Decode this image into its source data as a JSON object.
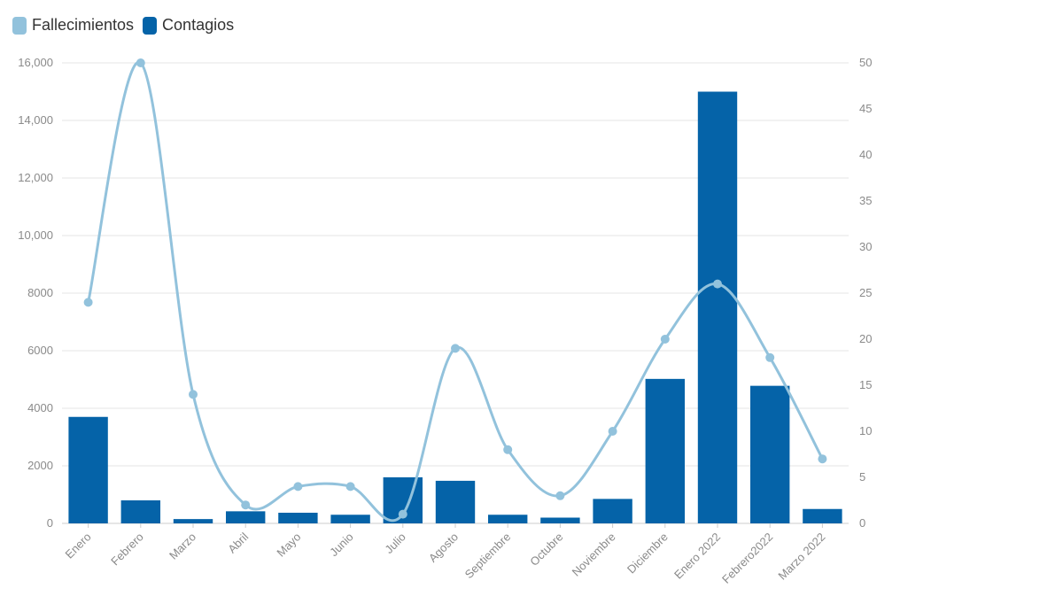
{
  "legend": [
    {
      "label": "Fallecimientos",
      "color": "#92c2dc"
    },
    {
      "label": "Contagios",
      "color": "#0563a8"
    }
  ],
  "chart_data": {
    "type": "bar",
    "categories": [
      "Enero",
      "Febrero",
      "Marzo",
      "Abril",
      "Mayo",
      "Junio",
      "Julio",
      "Agosto",
      "Septiembre",
      "Octubre",
      "Noviembre",
      "Diciembre",
      "Enero 2022",
      "Febrero2022",
      "Marzo 2022"
    ],
    "series": [
      {
        "name": "Contagios",
        "type": "bar",
        "axis": "left",
        "color": "#0563a8",
        "values": [
          3700,
          800,
          150,
          420,
          370,
          300,
          1600,
          1480,
          300,
          200,
          850,
          5020,
          15000,
          4780,
          500
        ]
      },
      {
        "name": "Fallecimientos",
        "type": "line",
        "axis": "right",
        "color": "#92c2dc",
        "smooth": true,
        "values": [
          24,
          50,
          14,
          2,
          4,
          4,
          1,
          19,
          8,
          3,
          10,
          20,
          26,
          18,
          7
        ]
      }
    ],
    "y_left": {
      "min": 0,
      "max": 16000,
      "ticks": [
        "0",
        "2000",
        "4000",
        "6000",
        "8000",
        "10,000",
        "12,000",
        "14,000",
        "16,000"
      ]
    },
    "y_right": {
      "min": 0,
      "max": 50,
      "ticks": [
        "0",
        "5",
        "10",
        "15",
        "20",
        "25",
        "30",
        "35",
        "40",
        "45",
        "50"
      ]
    },
    "grid": true,
    "legend_position": "top-left"
  }
}
